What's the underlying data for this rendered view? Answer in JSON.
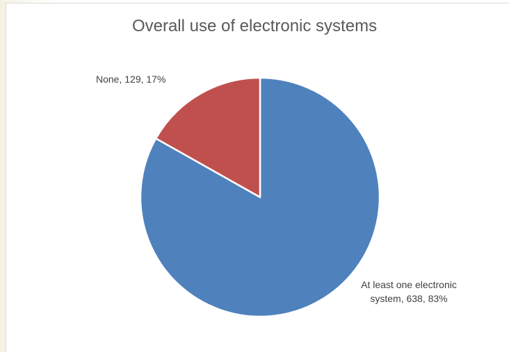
{
  "chart_data": {
    "type": "pie",
    "title": "Overall use of electronic systems",
    "slices": [
      {
        "label": "At least one electronic system",
        "value": 638,
        "percent": 83,
        "color": "#4f81bd",
        "data_label": "At least one electronic system, 638, 83%"
      },
      {
        "label": "None",
        "value": 129,
        "percent": 17,
        "color": "#c0504d",
        "data_label": "None, 129, 17%"
      }
    ],
    "legend": "none"
  }
}
